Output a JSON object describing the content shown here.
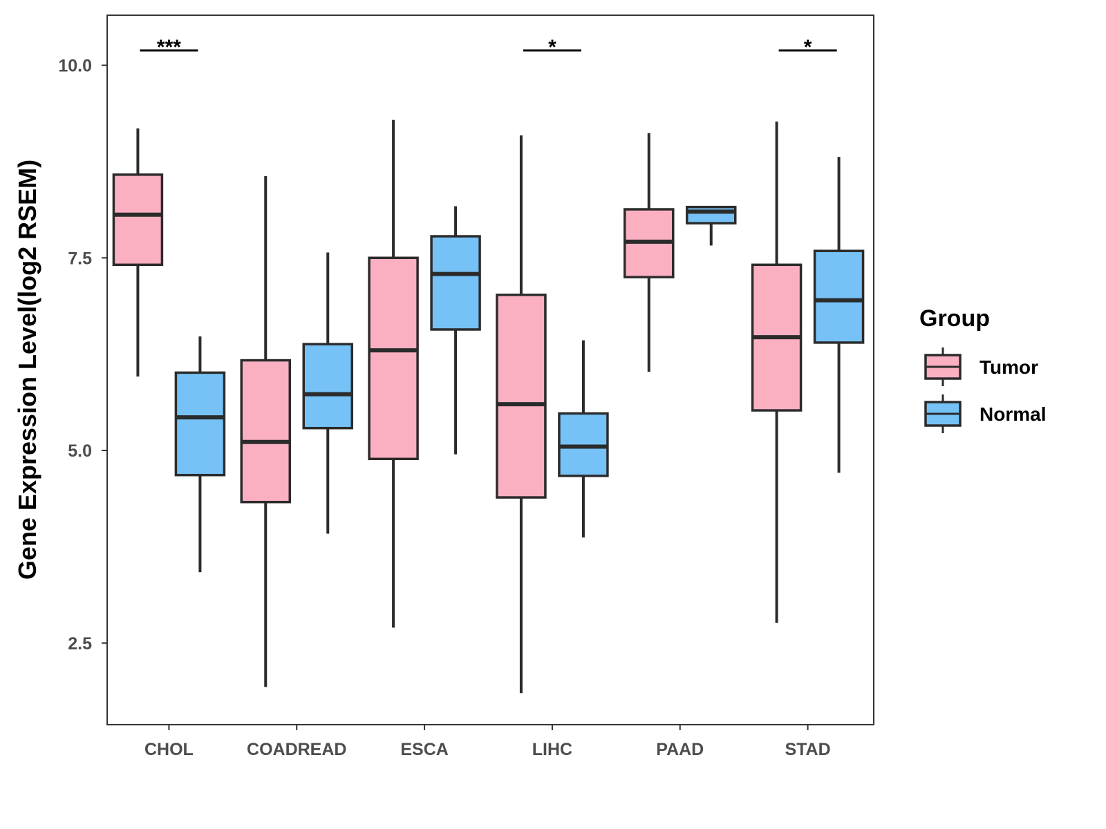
{
  "chart_data": {
    "type": "boxplot",
    "title": "",
    "xlabel": "",
    "ylabel": "Gene Expression Level(log2 RSEM)",
    "ylim": [
      1.44,
      10.65
    ],
    "yticks": [
      "2.5",
      "5.0",
      "7.5",
      "10.0"
    ],
    "categories": [
      "CHOL",
      "COADREAD",
      "ESCA",
      "LIHC",
      "PAAD",
      "STAD"
    ],
    "legend": {
      "title": "Group",
      "position": "right",
      "entries": [
        "Tumor",
        "Normal"
      ]
    },
    "colors": {
      "Tumor": "#fbb0c2",
      "Normal": "#76c2f7",
      "outline": "#2b2b2b"
    },
    "series": [
      {
        "name": "Tumor",
        "boxes": [
          {
            "min": 5.96,
            "q1": 7.41,
            "median": 8.06,
            "q3": 8.58,
            "max": 9.18
          },
          {
            "min": 1.93,
            "q1": 4.33,
            "median": 5.11,
            "q3": 6.17,
            "max": 8.56
          },
          {
            "min": 2.7,
            "q1": 4.89,
            "median": 6.3,
            "q3": 7.5,
            "max": 9.29
          },
          {
            "min": 1.85,
            "q1": 4.39,
            "median": 5.6,
            "q3": 7.02,
            "max": 9.09
          },
          {
            "min": 6.02,
            "q1": 7.25,
            "median": 7.71,
            "q3": 8.13,
            "max": 9.12
          },
          {
            "min": 2.76,
            "q1": 5.52,
            "median": 6.47,
            "q3": 7.41,
            "max": 9.27
          }
        ]
      },
      {
        "name": "Normal",
        "boxes": [
          {
            "min": 3.42,
            "q1": 4.68,
            "median": 5.43,
            "q3": 6.01,
            "max": 6.48
          },
          {
            "min": 3.92,
            "q1": 5.29,
            "median": 5.73,
            "q3": 6.38,
            "max": 7.57
          },
          {
            "min": 4.95,
            "q1": 6.57,
            "median": 7.29,
            "q3": 7.78,
            "max": 8.17
          },
          {
            "min": 3.87,
            "q1": 4.67,
            "median": 5.05,
            "q3": 5.48,
            "max": 6.43
          },
          {
            "min": 7.66,
            "q1": 7.95,
            "median": 8.1,
            "q3": 8.16,
            "max": 8.16
          },
          {
            "min": 4.71,
            "q1": 6.4,
            "median": 6.95,
            "q3": 7.59,
            "max": 8.81
          }
        ]
      }
    ],
    "significance": [
      {
        "category": "CHOL",
        "label": "***"
      },
      {
        "category": "LIHC",
        "label": "*"
      },
      {
        "category": "STAD",
        "label": "*"
      }
    ]
  }
}
